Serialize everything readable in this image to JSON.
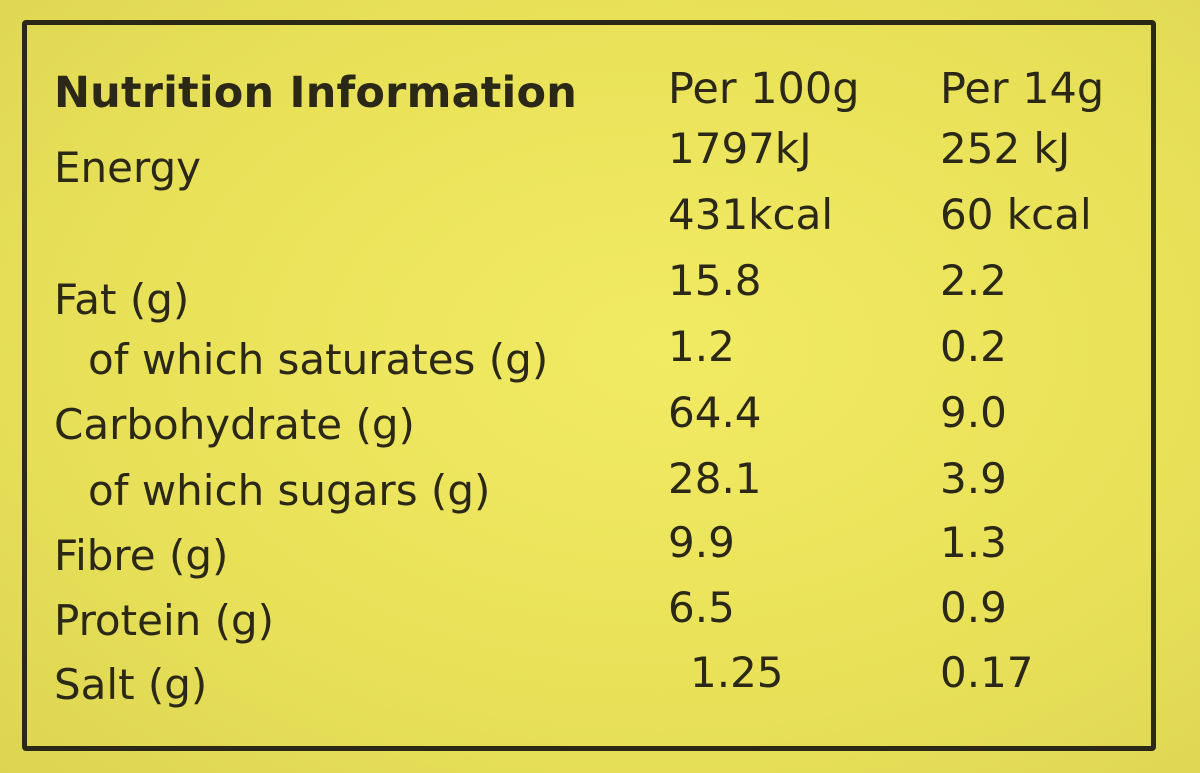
{
  "table": {
    "title": "Nutrition Information",
    "col1_header": "Per 100g",
    "col2_header": "Per 14g",
    "rows": [
      {
        "label": "Energy",
        "v1": "1797kJ",
        "v2": "252 kJ"
      },
      {
        "label": "",
        "v1": "431kcal",
        "v2": "60 kcal"
      },
      {
        "label": "Fat (g)",
        "v1": "15.8",
        "v2": "2.2"
      },
      {
        "label": "of which saturates (g)",
        "v1": "1.2",
        "v2": "0.2"
      },
      {
        "label": "Carbohydrate (g)",
        "v1": "64.4",
        "v2": "9.0"
      },
      {
        "label": "of which sugars (g)",
        "v1": "28.1",
        "v2": "3.9"
      },
      {
        "label": "Fibre (g)",
        "v1": "9.9",
        "v2": "1.3"
      },
      {
        "label": "Protein (g)",
        "v1": "6.5",
        "v2": "0.9"
      },
      {
        "label": "Salt (g)",
        "v1": "1.25",
        "v2": "0.17"
      }
    ]
  }
}
